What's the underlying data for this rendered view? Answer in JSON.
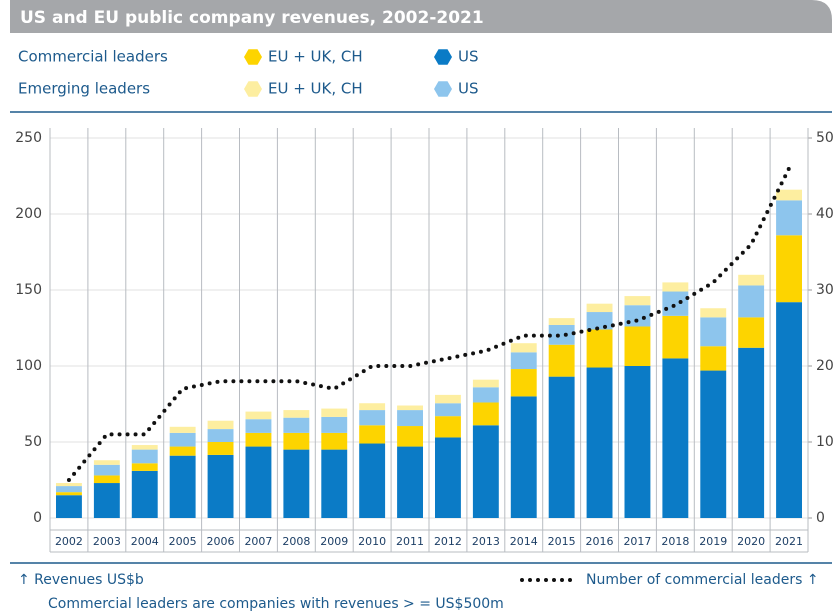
{
  "chart_data": {
    "type": "bar",
    "title": "US and EU public company revenues, 2002-2021",
    "legend_groups": [
      "Commercial leaders",
      "Emerging leaders"
    ],
    "categories": [
      "2002",
      "2003",
      "2004",
      "2005",
      "2006",
      "2007",
      "2008",
      "2009",
      "2010",
      "2011",
      "2012",
      "2013",
      "2014",
      "2015",
      "2016",
      "2017",
      "2018",
      "2019",
      "2020",
      "2021"
    ],
    "series": [
      {
        "name": "US",
        "group": 0,
        "color": "#0b7bc6",
        "values": [
          15,
          23,
          31,
          41,
          41.5,
          47,
          45,
          45,
          49,
          47,
          53,
          61,
          80,
          93,
          99,
          100,
          105,
          97,
          112,
          142
        ]
      },
      {
        "name": "EU + UK, CH",
        "group": 0,
        "color": "#fdd400",
        "values": [
          2,
          5,
          5,
          6,
          8.5,
          9,
          11,
          11,
          12,
          13.5,
          14,
          15,
          18,
          21,
          25,
          26,
          28,
          16,
          20,
          44
        ]
      },
      {
        "name": "US",
        "group": 1,
        "color": "#8dc5ed",
        "values": [
          4,
          7,
          9,
          9,
          8.5,
          9,
          10,
          10.5,
          10,
          10.5,
          8.5,
          10,
          11,
          13,
          11.5,
          14,
          16,
          19,
          21,
          23
        ]
      },
      {
        "name": "EU + UK, CH",
        "group": 1,
        "color": "#fdeea0",
        "values": [
          2,
          3,
          3,
          4,
          5.5,
          5,
          5,
          5.5,
          4.5,
          3,
          5.5,
          5,
          6,
          4.5,
          5.5,
          6,
          6,
          6,
          7,
          7
        ]
      },
      {
        "name": "Number of commercial leaders ↑",
        "type": "line",
        "axis": "y2",
        "color": "#111111",
        "values": [
          5,
          11,
          11,
          17,
          18,
          18,
          18,
          17,
          20,
          20,
          21,
          22,
          24,
          24,
          25,
          26,
          28,
          31,
          36,
          46
        ]
      }
    ],
    "ylabel": "↑ Revenues US$b",
    "note": "Commercial leaders are companies with revenues > = US$500m",
    "ylim": [
      0,
      250
    ],
    "yticks": [
      0,
      50,
      100,
      150,
      200,
      250
    ],
    "y2lim": [
      0,
      50
    ],
    "y2ticks": [
      0,
      10,
      20,
      30,
      40,
      50
    ],
    "grid": true
  }
}
